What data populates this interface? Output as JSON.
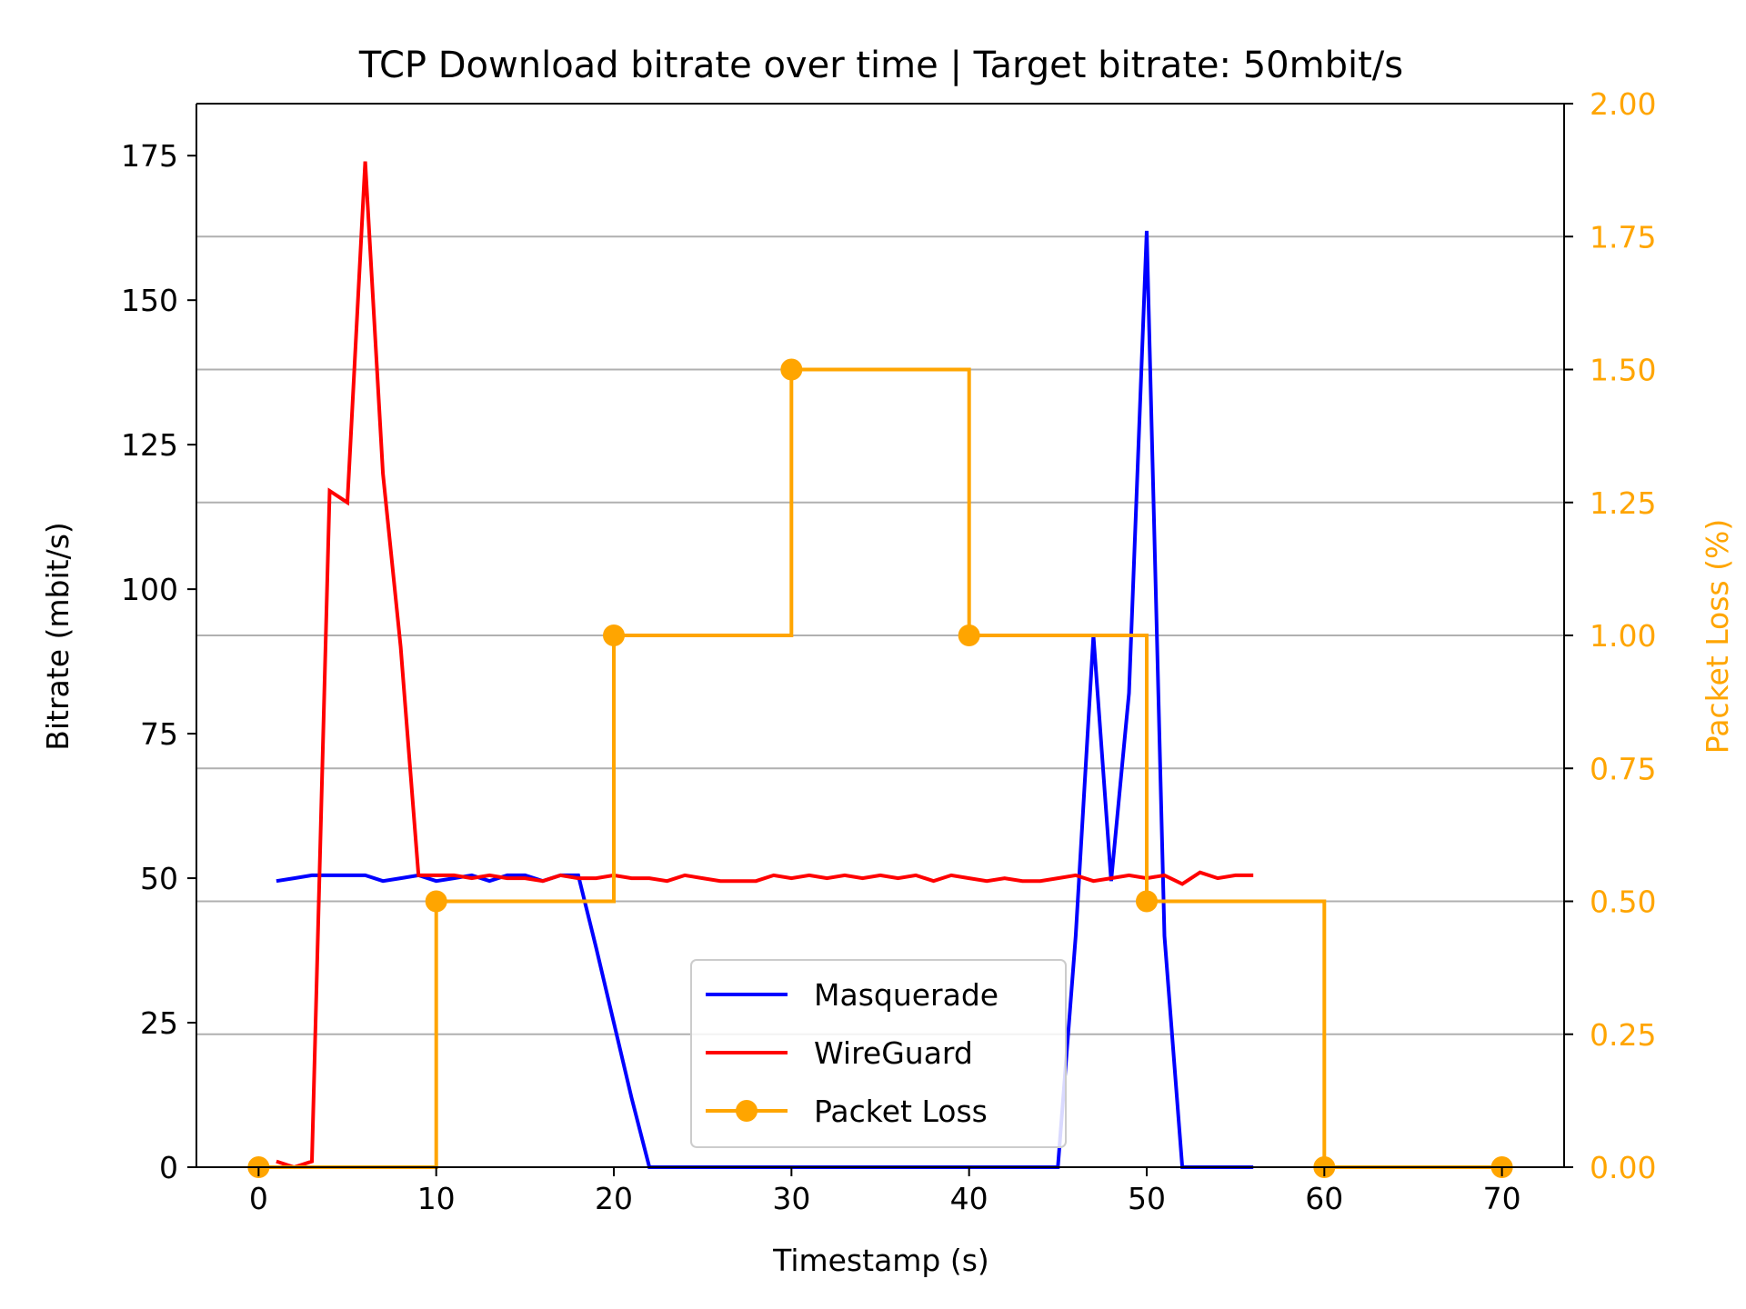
{
  "chart_data": {
    "type": "line",
    "title": "TCP Download bitrate over time | Target bitrate: 50mbit/s",
    "xlabel": "Timestamp (s)",
    "ylabel": "Bitrate (mbit/s)",
    "y2label": "Packet Loss (%)",
    "xlim": [
      -3.5,
      73.5
    ],
    "ylim": [
      0,
      184
    ],
    "y2lim": [
      0,
      2.0
    ],
    "x_ticks": [
      0,
      10,
      20,
      30,
      40,
      50,
      60,
      70
    ],
    "y_ticks": [
      0,
      25,
      50,
      75,
      100,
      125,
      150,
      175
    ],
    "y2_ticks": [
      "0.00",
      "0.25",
      "0.50",
      "0.75",
      "1.00",
      "1.25",
      "1.50",
      "1.75",
      "2.00"
    ],
    "grid": "horizontal lines at right axis ticks",
    "legend_position": "lower-center",
    "colors": {
      "masquerade": "#0000ff",
      "wireguard": "#ff0000",
      "packet_loss": "#ffa500",
      "grid": "#b0b0b0",
      "axis": "#000000"
    },
    "series": [
      {
        "name": "Masquerade",
        "axis": "left",
        "x": [
          1,
          2,
          3,
          4,
          5,
          6,
          7,
          8,
          9,
          10,
          11,
          12,
          13,
          14,
          15,
          16,
          17,
          18,
          19,
          20,
          21,
          22,
          23,
          24,
          25,
          26,
          27,
          28,
          29,
          30,
          31,
          32,
          33,
          34,
          35,
          36,
          37,
          38,
          39,
          40,
          41,
          42,
          43,
          44,
          45,
          46,
          47,
          48,
          49,
          50,
          51,
          52,
          53,
          54,
          55,
          56
        ],
        "values": [
          49.5,
          50,
          50.5,
          50.5,
          50.5,
          50.5,
          49.5,
          50,
          50.5,
          49.5,
          50,
          50.5,
          49.5,
          50.5,
          50.5,
          49.5,
          50.5,
          50.5,
          38,
          25,
          12,
          0,
          0,
          0,
          0,
          0,
          0,
          0,
          0,
          0,
          0,
          0,
          0,
          0,
          0,
          0,
          0,
          0,
          0,
          0,
          0,
          0,
          0,
          0,
          0,
          40,
          92,
          49.5,
          82,
          162,
          40,
          0,
          0,
          0,
          0,
          0
        ]
      },
      {
        "name": "WireGuard",
        "axis": "left",
        "x": [
          1,
          2,
          3,
          4,
          5,
          6,
          7,
          8,
          9,
          10,
          11,
          12,
          13,
          14,
          15,
          16,
          17,
          18,
          19,
          20,
          21,
          22,
          23,
          24,
          25,
          26,
          27,
          28,
          29,
          30,
          31,
          32,
          33,
          34,
          35,
          36,
          37,
          38,
          39,
          40,
          41,
          42,
          43,
          44,
          45,
          46,
          47,
          48,
          49,
          50,
          51,
          52,
          53,
          54,
          55,
          56
        ],
        "values": [
          1,
          0,
          1,
          117,
          115,
          174,
          120,
          90,
          50.5,
          50.5,
          50.5,
          50,
          50.5,
          50,
          50,
          49.5,
          50.5,
          50,
          50,
          50.5,
          50,
          50,
          49.5,
          50.5,
          50,
          49.5,
          49.5,
          49.5,
          50.5,
          50,
          50.5,
          50,
          50.5,
          50,
          50.5,
          50,
          50.5,
          49.5,
          50.5,
          50,
          49.5,
          50,
          49.5,
          49.5,
          50,
          50.5,
          49.5,
          50,
          50.5,
          50,
          50.5,
          49,
          51,
          50,
          50.5,
          50.5
        ]
      },
      {
        "name": "Packet Loss",
        "axis": "right",
        "step": "post",
        "x": [
          0,
          10,
          20,
          30,
          40,
          50,
          60,
          70
        ],
        "values": [
          0,
          0.5,
          1.0,
          1.5,
          1.0,
          0.5,
          0,
          0
        ]
      }
    ]
  }
}
